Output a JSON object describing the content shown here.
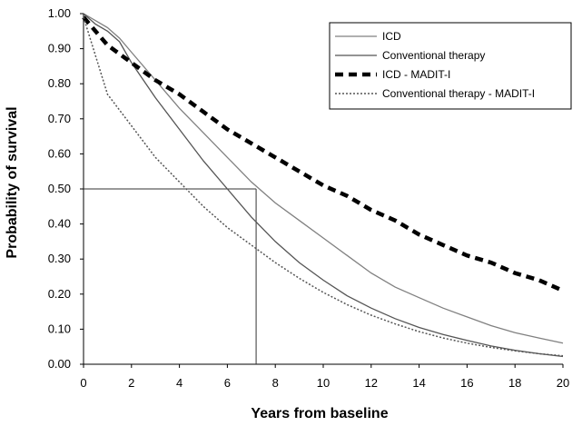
{
  "chart_data": {
    "type": "line",
    "xlabel": "Years from baseline",
    "ylabel": "Probability of survival",
    "xlim": [
      0,
      20
    ],
    "ylim": [
      0,
      1
    ],
    "x_ticks": [
      "0",
      "2",
      "4",
      "6",
      "8",
      "10",
      "12",
      "14",
      "16",
      "18",
      "20"
    ],
    "y_ticks": [
      "0.00",
      "0.10",
      "0.20",
      "0.30",
      "0.40",
      "0.50",
      "0.60",
      "0.70",
      "0.80",
      "0.90",
      "1.00"
    ],
    "legend_position": "top-right",
    "grid": false,
    "series": [
      {
        "name": "ICD",
        "style": "solid-thin",
        "color": "#808080",
        "x": [
          0,
          0.5,
          1,
          1.5,
          2,
          3,
          4,
          5,
          6,
          7,
          8,
          9,
          10,
          11,
          12,
          13,
          14,
          15,
          16,
          17,
          18,
          19,
          20
        ],
        "values": [
          1.0,
          0.98,
          0.96,
          0.93,
          0.89,
          0.81,
          0.73,
          0.66,
          0.59,
          0.52,
          0.46,
          0.41,
          0.36,
          0.31,
          0.26,
          0.22,
          0.19,
          0.16,
          0.135,
          0.11,
          0.09,
          0.075,
          0.06
        ]
      },
      {
        "name": "Conventional therapy",
        "style": "solid-thin",
        "color": "#555555",
        "x": [
          0,
          0.5,
          1,
          1.5,
          2,
          3,
          4,
          5,
          6,
          7,
          8,
          9,
          10,
          11,
          12,
          13,
          14,
          15,
          16,
          17,
          18,
          19,
          20
        ],
        "values": [
          1.0,
          0.97,
          0.95,
          0.92,
          0.86,
          0.76,
          0.67,
          0.58,
          0.5,
          0.42,
          0.35,
          0.29,
          0.24,
          0.195,
          0.16,
          0.13,
          0.105,
          0.085,
          0.068,
          0.052,
          0.04,
          0.03,
          0.022
        ]
      },
      {
        "name": "ICD - MADIT-I",
        "style": "dashed-thick",
        "color": "#000000",
        "x": [
          0,
          1,
          2,
          3,
          4,
          5,
          6,
          7,
          8,
          9,
          10,
          11,
          12,
          13,
          14,
          15,
          16,
          17,
          18,
          19,
          20
        ],
        "values": [
          0.99,
          0.91,
          0.86,
          0.81,
          0.77,
          0.72,
          0.67,
          0.63,
          0.59,
          0.55,
          0.51,
          0.48,
          0.44,
          0.41,
          0.37,
          0.34,
          0.31,
          0.29,
          0.26,
          0.24,
          0.21
        ]
      },
      {
        "name": "Conventional therapy - MADIT-I",
        "style": "dotted",
        "color": "#555555",
        "x": [
          0,
          0.5,
          1,
          2,
          3,
          4,
          5,
          6,
          7,
          8,
          9,
          10,
          11,
          12,
          13,
          14,
          15,
          16,
          17,
          18,
          19,
          20
        ],
        "values": [
          0.99,
          0.88,
          0.77,
          0.68,
          0.59,
          0.52,
          0.45,
          0.39,
          0.34,
          0.29,
          0.245,
          0.205,
          0.17,
          0.14,
          0.115,
          0.093,
          0.075,
          0.06,
          0.048,
          0.038,
          0.03,
          0.024
        ]
      }
    ],
    "reference_lines": {
      "horizontal_y": 0.5,
      "horizontal_to_x": 7.2,
      "vertical_x": 7.2
    }
  }
}
